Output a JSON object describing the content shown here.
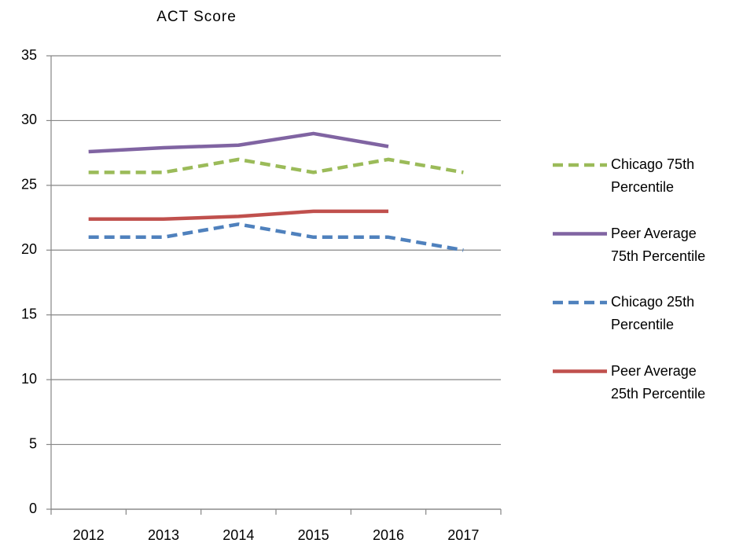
{
  "chart_data": {
    "type": "line",
    "title": "ACT Score",
    "categories": [
      "2012",
      "2013",
      "2014",
      "2015",
      "2016",
      "2017"
    ],
    "series": [
      {
        "name": "Chicago 75th Percentile",
        "color": "#9bbb59",
        "dash": true,
        "values": [
          26,
          26,
          27,
          26,
          27,
          26
        ]
      },
      {
        "name": "Peer Average 75th Percentile",
        "color": "#8064a2",
        "dash": false,
        "values": [
          27.6,
          27.9,
          28.1,
          29,
          28,
          null
        ]
      },
      {
        "name": "Chicago 25th Percentile",
        "color": "#4f81bd",
        "dash": true,
        "values": [
          21,
          21,
          22,
          21,
          21,
          20
        ]
      },
      {
        "name": "Peer Average 25th Percentile",
        "color": "#c0504d",
        "dash": false,
        "values": [
          22.4,
          22.4,
          22.6,
          23,
          23,
          null
        ]
      }
    ],
    "ylim": [
      0,
      35
    ],
    "yticks": [
      0,
      5,
      10,
      15,
      20,
      25,
      30,
      35
    ],
    "grid": true,
    "legend": "right"
  }
}
